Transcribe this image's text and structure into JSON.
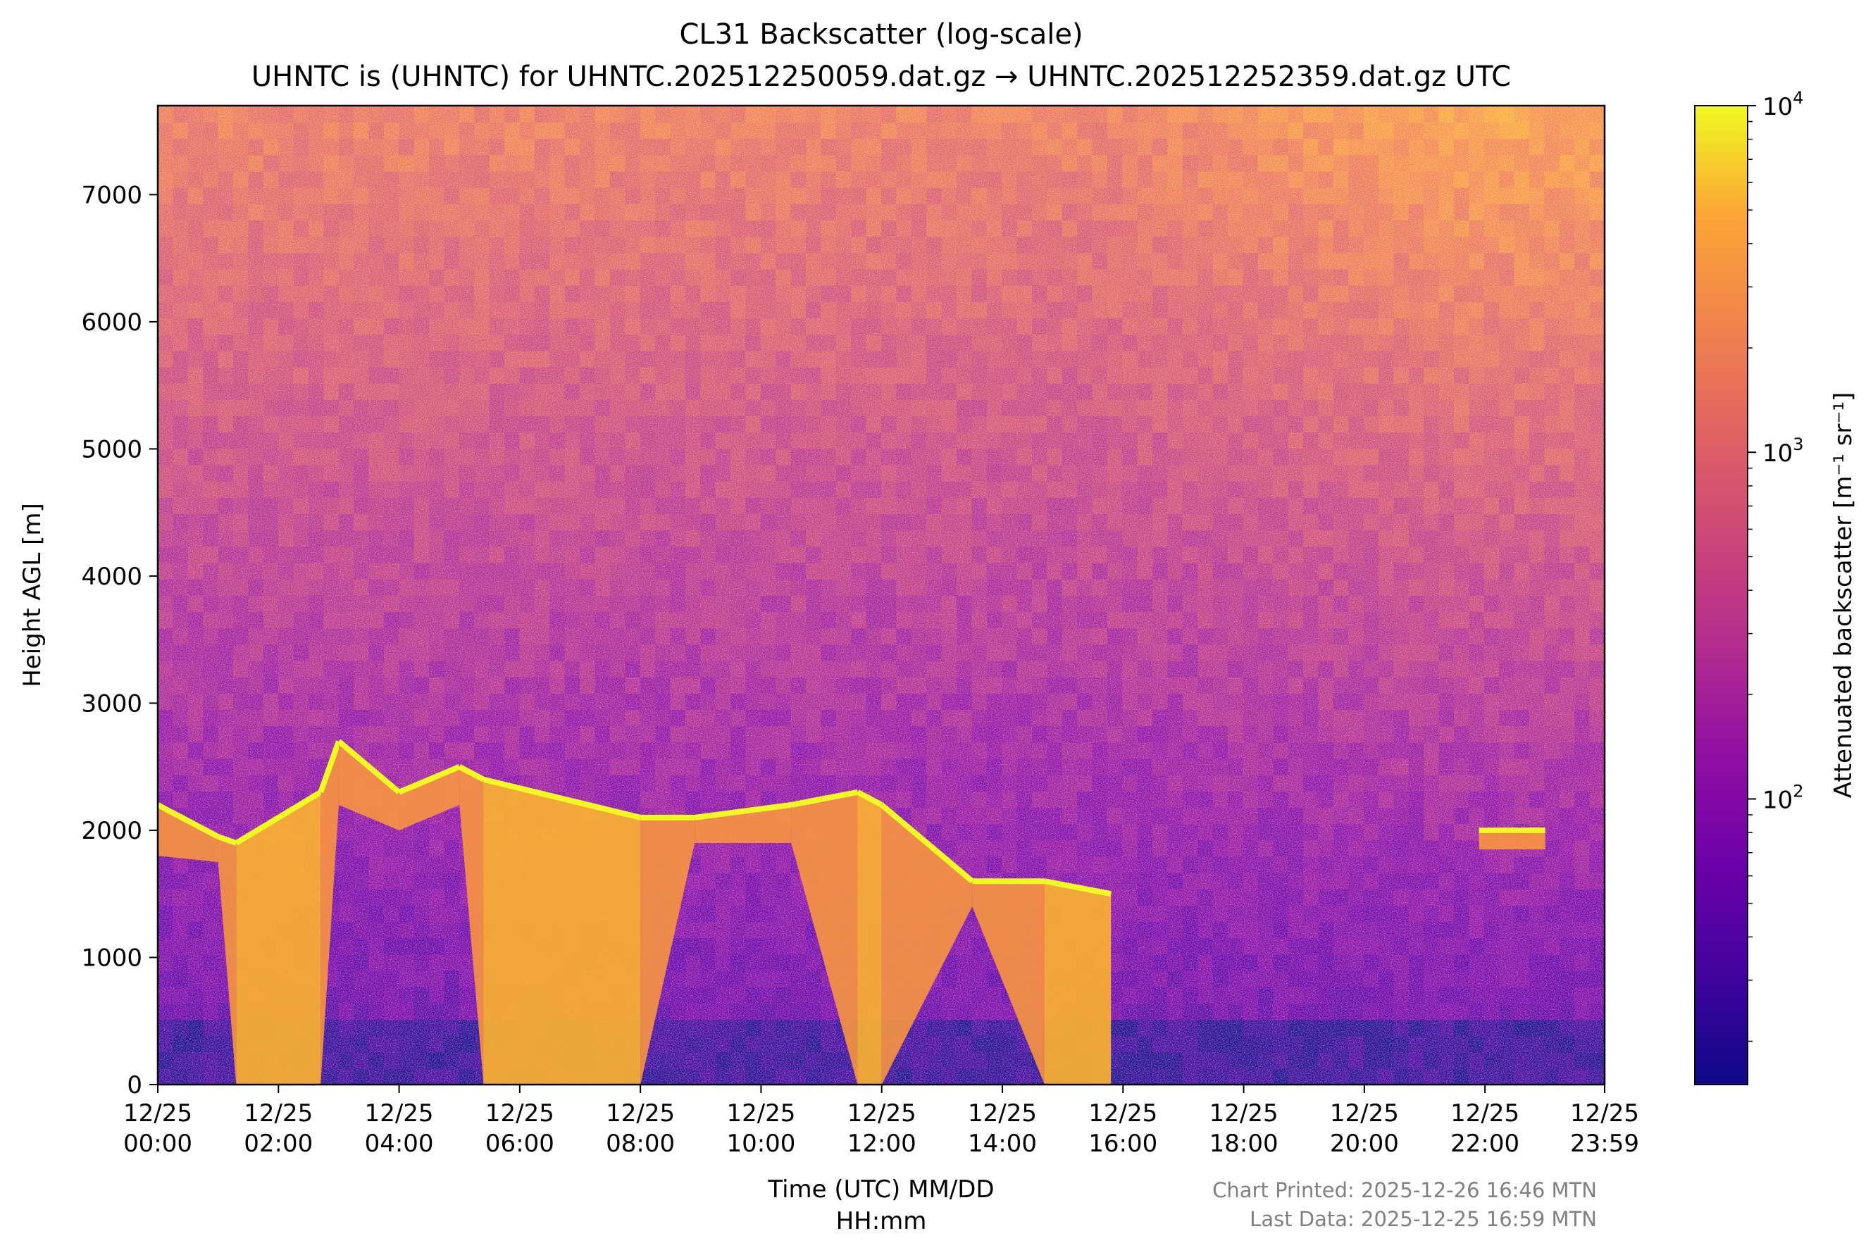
{
  "chart_data": {
    "type": "heatmap",
    "title": "CL31 Backscatter (log-scale)",
    "subtitle": "UHNTC is (UHNTC) for UHNTC.202512250059.dat.gz → UHNTC.202512252359.dat.gz UTC",
    "xlabel_line1": "Time (UTC) MM/DD",
    "xlabel_line2": "HH:mm",
    "ylabel": "Height AGL [m]",
    "colorbar_label": "Attenuated backscatter [m⁻¹ sr⁻¹]",
    "colormap": "plasma",
    "colorbar_range": [
      15,
      10000
    ],
    "colorbar_scale": "log",
    "colorbar_ticks": [
      {
        "value": 100,
        "base": "10",
        "exp": "2"
      },
      {
        "value": 1000,
        "base": "10",
        "exp": "3"
      },
      {
        "value": 10000,
        "base": "10",
        "exp": "4"
      }
    ],
    "xlim_hours": [
      0,
      23.983
    ],
    "ylim": [
      0,
      7700
    ],
    "x_ticks": [
      {
        "hour": 0,
        "date": "12/25",
        "time": "00:00"
      },
      {
        "hour": 2,
        "date": "12/25",
        "time": "02:00"
      },
      {
        "hour": 4,
        "date": "12/25",
        "time": "04:00"
      },
      {
        "hour": 6,
        "date": "12/25",
        "time": "06:00"
      },
      {
        "hour": 8,
        "date": "12/25",
        "time": "08:00"
      },
      {
        "hour": 10,
        "date": "12/25",
        "time": "10:00"
      },
      {
        "hour": 12,
        "date": "12/25",
        "time": "12:00"
      },
      {
        "hour": 14,
        "date": "12/25",
        "time": "14:00"
      },
      {
        "hour": 16,
        "date": "12/25",
        "time": "16:00"
      },
      {
        "hour": 18,
        "date": "12/25",
        "time": "18:00"
      },
      {
        "hour": 20,
        "date": "12/25",
        "time": "20:00"
      },
      {
        "hour": 22,
        "date": "12/25",
        "time": "22:00"
      },
      {
        "hour": 23.983,
        "date": "12/25",
        "time": "23:59"
      }
    ],
    "y_ticks": [
      0,
      1000,
      2000,
      3000,
      4000,
      5000,
      6000,
      7000
    ],
    "cloud_layer": [
      {
        "hour": 0.0,
        "top_m": 2200,
        "base_m": 1800,
        "dense_below": false
      },
      {
        "hour": 1.0,
        "top_m": 1950,
        "base_m": 1750,
        "dense_below": false
      },
      {
        "hour": 1.3,
        "top_m": 1900,
        "base_m": 0,
        "dense_below": true
      },
      {
        "hour": 2.7,
        "top_m": 2300,
        "base_m": 0,
        "dense_below": true
      },
      {
        "hour": 3.0,
        "top_m": 2700,
        "base_m": 2200,
        "dense_below": false
      },
      {
        "hour": 4.0,
        "top_m": 2300,
        "base_m": 2000,
        "dense_below": false
      },
      {
        "hour": 5.0,
        "top_m": 2500,
        "base_m": 2200,
        "dense_below": false
      },
      {
        "hour": 5.4,
        "top_m": 2400,
        "base_m": 0,
        "dense_below": true
      },
      {
        "hour": 8.0,
        "top_m": 2100,
        "base_m": 0,
        "dense_below": true
      },
      {
        "hour": 8.9,
        "top_m": 2100,
        "base_m": 1900,
        "dense_below": false
      },
      {
        "hour": 10.5,
        "top_m": 2200,
        "base_m": 1900,
        "dense_below": false
      },
      {
        "hour": 11.6,
        "top_m": 2300,
        "base_m": 0,
        "dense_below": true
      },
      {
        "hour": 12.0,
        "top_m": 2200,
        "base_m": 0,
        "dense_below": true
      },
      {
        "hour": 13.5,
        "top_m": 1600,
        "base_m": 1400,
        "dense_below": false
      },
      {
        "hour": 14.7,
        "top_m": 1600,
        "base_m": 0,
        "dense_below": true
      },
      {
        "hour": 15.8,
        "top_m": 1500,
        "base_m": 0,
        "dense_below": true
      },
      {
        "hour": 21.9,
        "top_m": 2000,
        "base_m": 1850,
        "dense_below": false
      },
      {
        "hour": 23.0,
        "top_m": 2000,
        "base_m": 1850,
        "dense_below": false
      }
    ],
    "footer_printed": "Chart Printed: 2025-12-26 16:46 MTN",
    "footer_last_data": "Last Data: 2025-12-25 16:59 MTN"
  }
}
